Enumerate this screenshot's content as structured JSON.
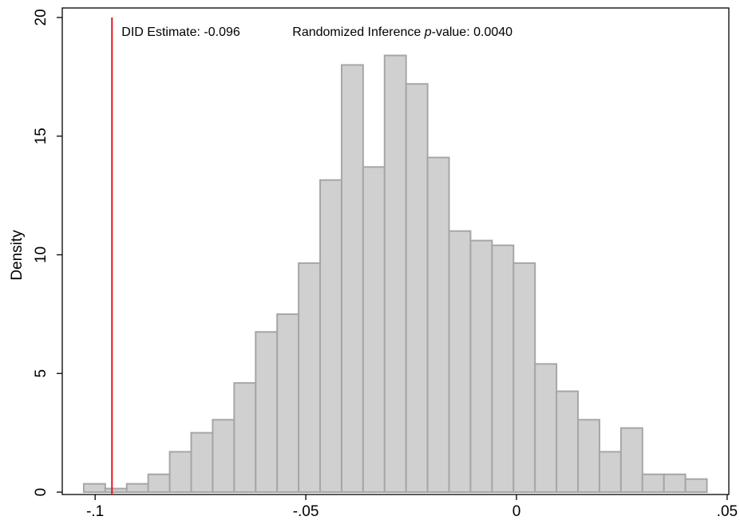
{
  "chart_data": {
    "type": "histogram",
    "ylabel": "Density",
    "bins": [
      -0.1027,
      -0.0976,
      -0.0925,
      -0.0874,
      -0.0823,
      -0.0772,
      -0.0721,
      -0.067,
      -0.0619,
      -0.0568,
      -0.0517,
      -0.0466,
      -0.0415,
      -0.0364,
      -0.0313,
      -0.0262,
      -0.0211,
      -0.016,
      -0.0109,
      -0.0058,
      -0.0007,
      0.0044,
      0.0095,
      0.0146,
      0.0197,
      0.0248,
      0.0299,
      0.035,
      0.0401,
      0.0452
    ],
    "values": [
      0.35,
      0.15,
      0.35,
      0.75,
      1.7,
      2.5,
      3.05,
      4.6,
      6.75,
      7.5,
      9.65,
      13.15,
      18.0,
      13.7,
      18.4,
      17.2,
      14.1,
      11.0,
      10.6,
      10.4,
      9.65,
      5.4,
      4.25,
      3.05,
      1.7,
      2.7,
      0.75,
      0.75,
      0.55
    ],
    "color": "#d0d0d0",
    "edgecolor": "#a6a6a6",
    "xlim": [
      -0.1078,
      0.0504
    ],
    "ylim": [
      -0.1,
      20.4
    ],
    "xticks": [
      {
        "value": -0.1,
        "label": "-.1"
      },
      {
        "value": -0.05,
        "label": "-.05"
      },
      {
        "value": 0,
        "label": "0"
      },
      {
        "value": 0.05,
        "label": ".05"
      }
    ],
    "yticks": [
      0,
      5,
      10,
      15,
      20
    ],
    "vline": {
      "value": -0.096,
      "color": "#e8141b"
    },
    "annotation": {
      "estimate_label": "DID Estimate: -0.096",
      "pvalue_parts": [
        "Randomized Inference ",
        "p",
        "-value: 0.0040"
      ]
    }
  }
}
